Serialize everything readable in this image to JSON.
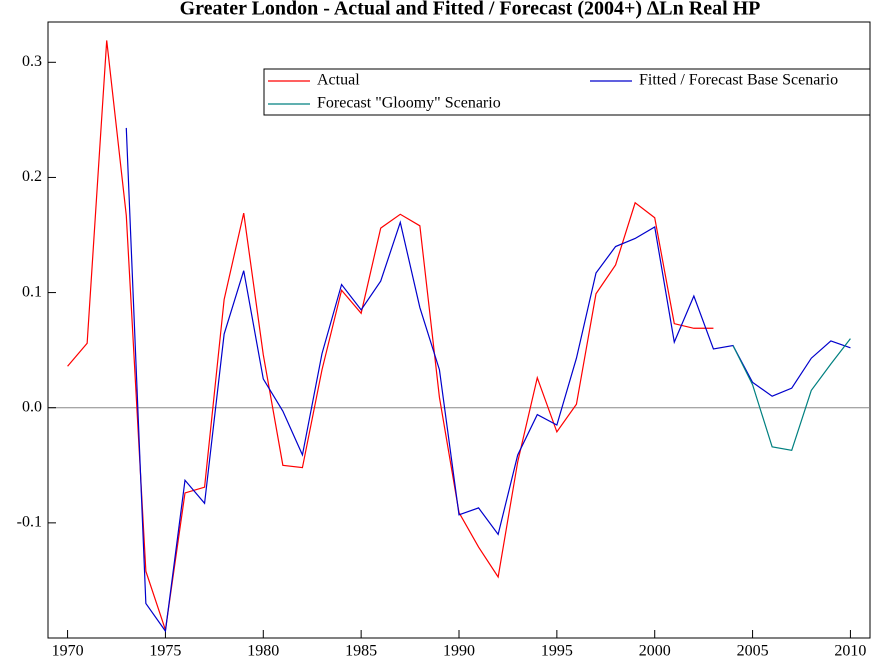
{
  "chart_data": {
    "type": "line",
    "title": "Greater London - Actual and Fitted / Forecast (2004+) ∆Ln Real HP",
    "x": [
      1970,
      1971,
      1972,
      1973,
      1974,
      1975,
      1976,
      1977,
      1978,
      1979,
      1980,
      1981,
      1982,
      1983,
      1984,
      1985,
      1986,
      1987,
      1988,
      1989,
      1990,
      1991,
      1992,
      1993,
      1994,
      1995,
      1996,
      1997,
      1998,
      1999,
      2000,
      2001,
      2002,
      2003,
      2004,
      2005,
      2006,
      2007,
      2008,
      2009,
      2010
    ],
    "series": [
      {
        "name": "Actual",
        "color": "#ff0000",
        "values": [
          0.036,
          0.056,
          0.319,
          0.167,
          -0.142,
          -0.193,
          -0.074,
          -0.069,
          0.094,
          0.169,
          0.046,
          -0.05,
          -0.052,
          0.033,
          0.102,
          0.082,
          0.156,
          0.168,
          0.158,
          0.009,
          -0.091,
          -0.121,
          -0.147,
          -0.047,
          0.026,
          -0.021,
          0.003,
          0.099,
          0.124,
          0.178,
          0.165,
          0.073,
          0.069,
          0.069,
          null,
          null,
          null,
          null,
          null,
          null,
          null
        ]
      },
      {
        "name": "Fitted / Forecast Base Scenario",
        "color": "#0000cc",
        "values": [
          null,
          null,
          null,
          0.243,
          -0.17,
          -0.194,
          -0.063,
          -0.083,
          0.064,
          0.119,
          0.025,
          -0.003,
          -0.041,
          0.047,
          0.107,
          0.085,
          0.11,
          0.161,
          0.087,
          0.033,
          -0.093,
          -0.087,
          -0.11,
          -0.041,
          -0.006,
          -0.015,
          0.043,
          0.117,
          0.14,
          0.147,
          0.157,
          0.057,
          0.097,
          0.051,
          0.054,
          0.022,
          0.01,
          0.017,
          0.043,
          0.058,
          0.052
        ]
      },
      {
        "name": "Forecast \"Gloomy\" Scenario",
        "color": "#008080",
        "values": [
          null,
          null,
          null,
          null,
          null,
          null,
          null,
          null,
          null,
          null,
          null,
          null,
          null,
          null,
          null,
          null,
          null,
          null,
          null,
          null,
          null,
          null,
          null,
          null,
          null,
          null,
          null,
          null,
          null,
          null,
          null,
          null,
          null,
          null,
          0.054,
          0.02,
          -0.034,
          -0.037,
          0.015,
          0.038,
          0.06
        ]
      }
    ],
    "xlim": [
      1969,
      2011
    ],
    "xticks": [
      1970,
      1975,
      1980,
      1985,
      1990,
      1995,
      2000,
      2005,
      2010
    ],
    "ylim": [
      -0.2,
      0.335
    ],
    "yticks": [
      -0.1,
      {
        "value": 0,
        "label": "0.0"
      },
      0.1,
      0.2,
      0.3
    ]
  }
}
